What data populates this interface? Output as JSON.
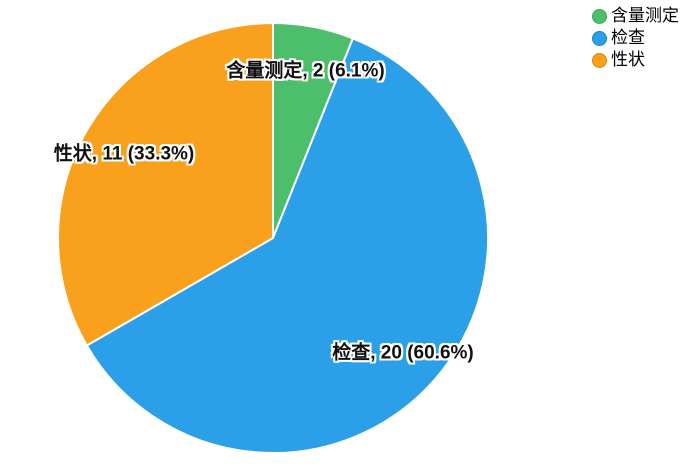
{
  "chart_data": {
    "type": "pie",
    "title": "",
    "background": "#FFFFFF",
    "separator_color": "#FFFFFF",
    "start_angle_deg": 0,
    "direction": "clockwise",
    "legend_position": "top-right",
    "total": 33,
    "slices": [
      {
        "name": "含量测定",
        "value": 2,
        "percent": "6.1%",
        "display_label": "含量测定, 2 (6.1%)",
        "color": "#4CBE6C",
        "border_color": "#3BA55C"
      },
      {
        "name": "检查",
        "value": 20,
        "percent": "60.6%",
        "display_label": "检查, 20 (60.6%)",
        "color": "#2B9FE8",
        "border_color": "#1C7FC4"
      },
      {
        "name": "性状",
        "value": 11,
        "percent": "33.3%",
        "display_label": "性状, 11 (33.3%)",
        "color": "#F9A01C",
        "border_color": "#D68510"
      }
    ]
  }
}
